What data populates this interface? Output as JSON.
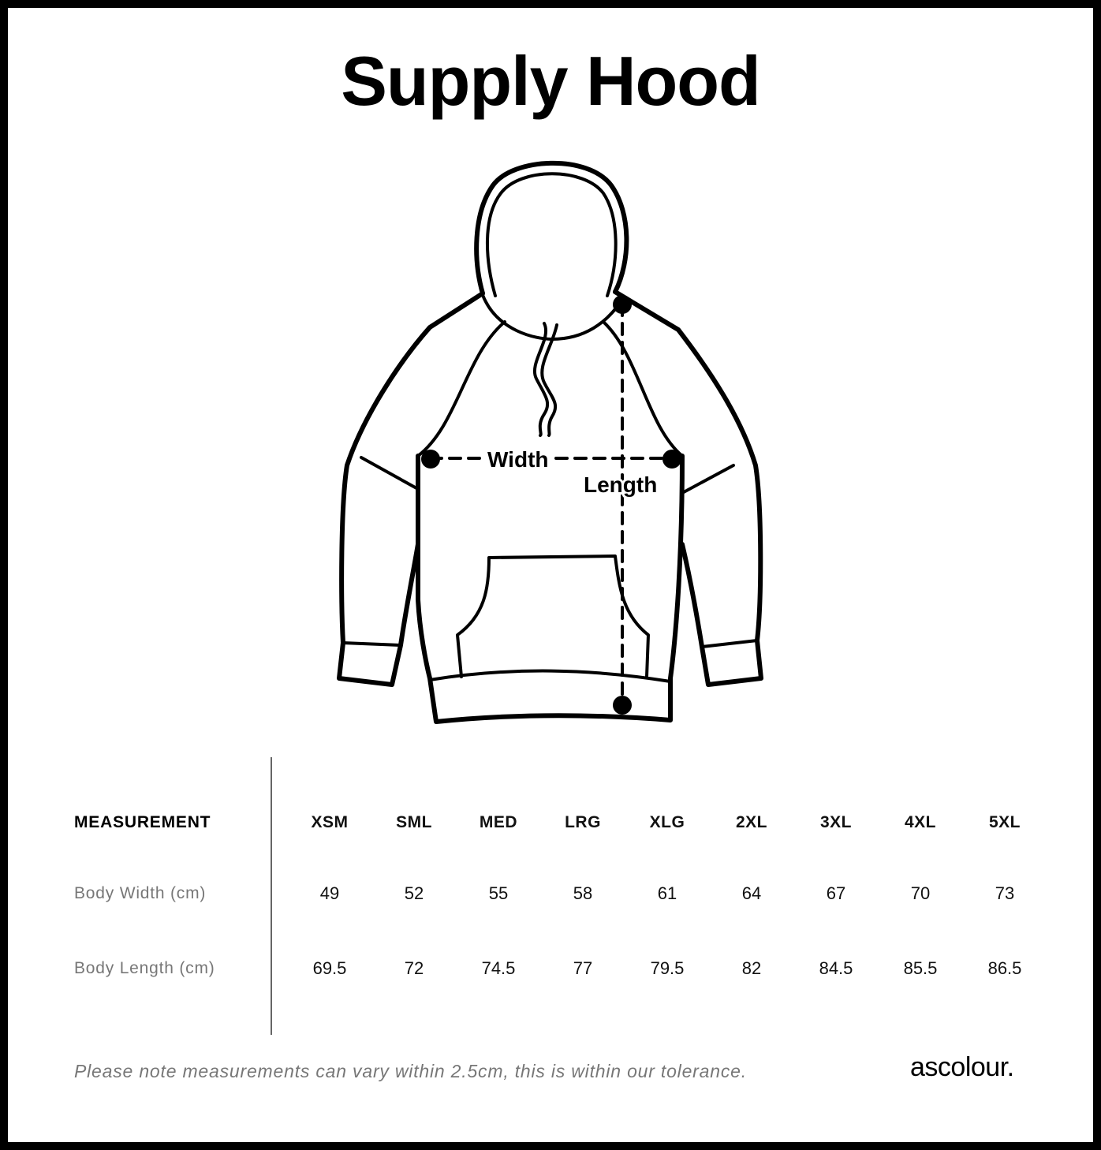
{
  "title": "Supply Hood",
  "diagram": {
    "width_label": "Width",
    "length_label": "Length"
  },
  "table": {
    "header_label": "MEASUREMENT",
    "sizes": [
      "XSM",
      "SML",
      "MED",
      "LRG",
      "XLG",
      "2XL",
      "3XL",
      "4XL",
      "5XL"
    ],
    "rows": [
      {
        "label": "Body Width (cm)",
        "values": [
          "49",
          "52",
          "55",
          "58",
          "61",
          "64",
          "67",
          "70",
          "73"
        ]
      },
      {
        "label": "Body Length (cm)",
        "values": [
          "69.5",
          "72",
          "74.5",
          "77",
          "79.5",
          "82",
          "84.5",
          "85.5",
          "86.5"
        ]
      }
    ]
  },
  "note": "Please note measurements can vary within 2.5cm, this is within our tolerance.",
  "logo": "ascolour."
}
